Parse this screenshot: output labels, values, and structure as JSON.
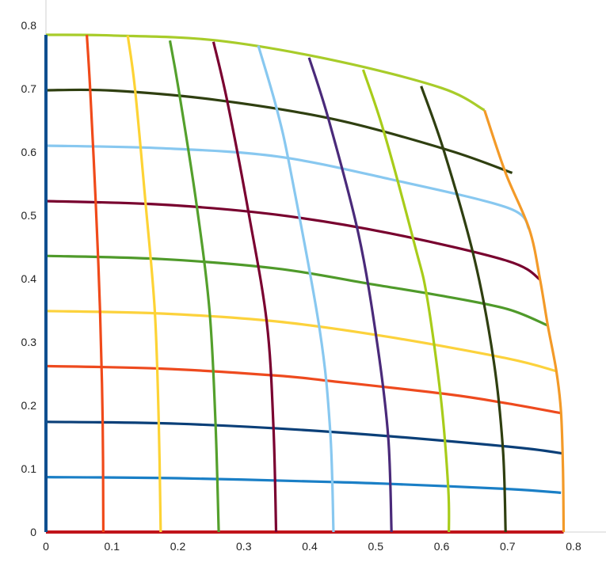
{
  "chart_data": {
    "type": "line",
    "title": "",
    "xlabel": "",
    "ylabel": "",
    "xlim": [
      0,
      0.8
    ],
    "ylim": [
      0,
      0.8
    ],
    "grid": false,
    "legend": "none",
    "x_ticks": [
      "0",
      "0.1",
      "0.2",
      "0.3",
      "0.4",
      "0.5",
      "0.6",
      "0.7",
      "0.8"
    ],
    "y_ticks": [
      "0",
      "0.1",
      "0.2",
      "0.3",
      "0.4",
      "0.5",
      "0.6",
      "0.7",
      "0.8"
    ],
    "series": [
      {
        "color": "#c0141b",
        "points": [
          [
            0,
            0
          ],
          [
            0.785,
            0
          ]
        ]
      },
      {
        "color": "#1a7fc6",
        "points": [
          [
            0,
            0.0867
          ],
          [
            0.2,
            0.085
          ],
          [
            0.435,
            0.079
          ],
          [
            0.522,
            0.076
          ],
          [
            0.7,
            0.068
          ],
          [
            0.781,
            0.062
          ]
        ]
      },
      {
        "color": "#0a3f78",
        "points": [
          [
            0,
            0.174
          ],
          [
            0.2,
            0.171
          ],
          [
            0.435,
            0.158
          ],
          [
            0.7,
            0.135
          ],
          [
            0.784,
            0.124
          ]
        ]
      },
      {
        "color": "#ee4a1e",
        "points": [
          [
            0,
            0.262
          ],
          [
            0.175,
            0.258
          ],
          [
            0.35,
            0.247
          ],
          [
            0.435,
            0.238
          ],
          [
            0.61,
            0.2175
          ],
          [
            0.7,
            0.203
          ],
          [
            0.782,
            0.1875
          ]
        ]
      },
      {
        "color": "#fcd23c",
        "points": [
          [
            0,
            0.349
          ],
          [
            0.175,
            0.345
          ],
          [
            0.35,
            0.3325
          ],
          [
            0.52,
            0.308
          ],
          [
            0.7,
            0.274
          ],
          [
            0.774,
            0.254
          ]
        ]
      },
      {
        "color": "#4f9a2a",
        "points": [
          [
            0,
            0.436
          ],
          [
            0.175,
            0.431
          ],
          [
            0.35,
            0.416
          ],
          [
            0.49,
            0.392
          ],
          [
            0.6,
            0.373
          ],
          [
            0.7,
            0.352
          ],
          [
            0.761,
            0.326
          ]
        ]
      },
      {
        "color": "#78002e",
        "points": [
          [
            0,
            0.5225
          ],
          [
            0.175,
            0.517
          ],
          [
            0.35,
            0.501
          ],
          [
            0.52,
            0.472
          ],
          [
            0.7,
            0.428
          ],
          [
            0.75,
            0.398
          ]
        ]
      },
      {
        "color": "#88c8f0",
        "points": [
          [
            0,
            0.61
          ],
          [
            0.175,
            0.606
          ],
          [
            0.35,
            0.593
          ],
          [
            0.52,
            0.5575
          ],
          [
            0.7,
            0.512
          ],
          [
            0.733,
            0.478
          ]
        ]
      },
      {
        "color": "#2f3f10",
        "points": [
          [
            0,
            0.6975
          ],
          [
            0.1,
            0.697
          ],
          [
            0.26,
            0.682
          ],
          [
            0.44,
            0.651
          ],
          [
            0.61,
            0.603
          ],
          [
            0.707,
            0.567
          ]
        ]
      },
      {
        "color": "#a8cc2a",
        "points": [
          [
            0,
            0.785
          ],
          [
            0.1,
            0.784
          ],
          [
            0.26,
            0.776
          ],
          [
            0.44,
            0.744
          ],
          [
            0.6,
            0.701
          ],
          [
            0.665,
            0.666
          ]
        ]
      },
      {
        "color": "#0f4f8f",
        "points": [
          [
            0,
            0
          ],
          [
            0,
            0.785
          ]
        ]
      },
      {
        "color": "#f04a1a",
        "points": [
          [
            0.087,
            0
          ],
          [
            0.086,
            0.175
          ],
          [
            0.082,
            0.35
          ],
          [
            0.0755,
            0.52
          ],
          [
            0.067,
            0.7
          ],
          [
            0.062,
            0.785
          ]
        ]
      },
      {
        "color": "#fdd335",
        "points": [
          [
            0.174,
            0
          ],
          [
            0.171,
            0.175
          ],
          [
            0.165,
            0.35
          ],
          [
            0.151,
            0.52
          ],
          [
            0.135,
            0.7
          ],
          [
            0.124,
            0.784
          ]
        ]
      },
      {
        "color": "#54a02c",
        "points": [
          [
            0.262,
            0
          ],
          [
            0.257,
            0.175
          ],
          [
            0.248,
            0.35
          ],
          [
            0.228,
            0.52
          ],
          [
            0.201,
            0.7
          ],
          [
            0.188,
            0.776
          ]
        ]
      },
      {
        "color": "#7a0030",
        "points": [
          [
            0.349,
            0
          ],
          [
            0.345,
            0.165
          ],
          [
            0.335,
            0.33
          ],
          [
            0.308,
            0.5
          ],
          [
            0.275,
            0.68
          ],
          [
            0.254,
            0.774
          ]
        ]
      },
      {
        "color": "#88c8f0",
        "points": [
          [
            0.436,
            0
          ],
          [
            0.431,
            0.16
          ],
          [
            0.415,
            0.32
          ],
          [
            0.371,
            0.57
          ],
          [
            0.35,
            0.668
          ],
          [
            0.322,
            0.768
          ]
        ]
      },
      {
        "color": "#4a2a7a",
        "points": [
          [
            0.524,
            0
          ],
          [
            0.519,
            0.15
          ],
          [
            0.502,
            0.3
          ],
          [
            0.474,
            0.47
          ],
          [
            0.429,
            0.65
          ],
          [
            0.399,
            0.749
          ]
        ]
      },
      {
        "color": "#a8cc1a",
        "points": [
          [
            0.611,
            0
          ],
          [
            0.61,
            0.07
          ],
          [
            0.599,
            0.21
          ],
          [
            0.578,
            0.37
          ],
          [
            0.56,
            0.45
          ],
          [
            0.513,
            0.63
          ],
          [
            0.481,
            0.73
          ]
        ]
      },
      {
        "color": "#2f3f10",
        "points": [
          [
            0.697,
            0
          ],
          [
            0.693,
            0.13
          ],
          [
            0.679,
            0.27
          ],
          [
            0.65,
            0.43
          ],
          [
            0.604,
            0.6
          ],
          [
            0.569,
            0.704
          ]
        ]
      },
      {
        "color": "#f39a28",
        "points": [
          [
            0.785,
            0
          ],
          [
            0.784,
            0.1
          ],
          [
            0.781,
            0.19
          ],
          [
            0.774,
            0.254
          ],
          [
            0.761,
            0.326
          ],
          [
            0.749,
            0.4
          ],
          [
            0.733,
            0.478
          ],
          [
            0.697,
            0.567
          ],
          [
            0.665,
            0.666
          ]
        ]
      }
    ]
  }
}
